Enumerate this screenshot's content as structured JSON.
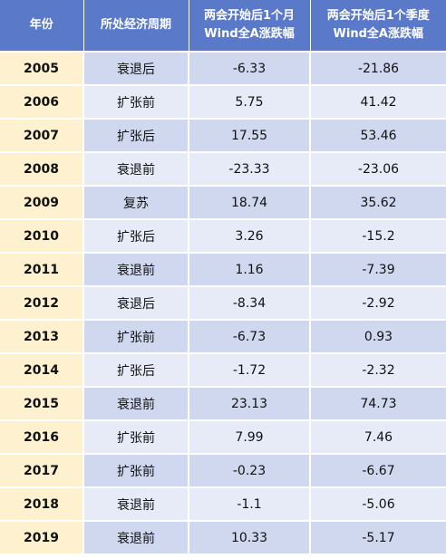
{
  "headers": [
    "年份",
    "所处经济周期",
    "两会开始后1个月\nWind全A涨跌幅",
    "两会开始后1个季度\nWind全A涨跌幅"
  ],
  "rows": [
    {
      "year": "2005",
      "stage": "衰退后",
      "month": "-6.33",
      "quarter": "-21.86"
    },
    {
      "year": "2006",
      "stage": "扩张前",
      "month": "5.75",
      "quarter": "41.42"
    },
    {
      "year": "2007",
      "stage": "扩张后",
      "month": "17.55",
      "quarter": "53.46"
    },
    {
      "year": "2008",
      "stage": "衰退前",
      "month": "-23.33",
      "quarter": "-23.06"
    },
    {
      "year": "2009",
      "stage": "复苏",
      "month": "18.74",
      "quarter": "35.62"
    },
    {
      "year": "2010",
      "stage": "扩张后",
      "month": "3.26",
      "quarter": "-15.2"
    },
    {
      "year": "2011",
      "stage": "衰退前",
      "month": "1.16",
      "quarter": "-7.39"
    },
    {
      "year": "2012",
      "stage": "衰退后",
      "month": "-8.34",
      "quarter": "-2.92"
    },
    {
      "year": "2013",
      "stage": "扩张前",
      "month": "-6.73",
      "quarter": "0.93"
    },
    {
      "year": "2014",
      "stage": "扩张后",
      "month": "-1.72",
      "quarter": "-2.32"
    },
    {
      "year": "2015",
      "stage": "衰退前",
      "month": "23.13",
      "quarter": "74.73"
    },
    {
      "year": "2016",
      "stage": "扩张前",
      "month": "7.99",
      "quarter": "7.46"
    },
    {
      "year": "2017",
      "stage": "扩张前",
      "month": "-0.23",
      "quarter": "-6.67"
    },
    {
      "year": "2018",
      "stage": "衰退前",
      "month": "-1.1",
      "quarter": "-5.06"
    },
    {
      "year": "2019",
      "stage": "衰退前",
      "month": "10.33",
      "quarter": "-5.17"
    }
  ],
  "colors": {
    "header_bg": "#5b79c9",
    "year_bg": "#fdf1cf",
    "row_dark": "#cfd8ef",
    "row_light": "#e6ebf7"
  }
}
